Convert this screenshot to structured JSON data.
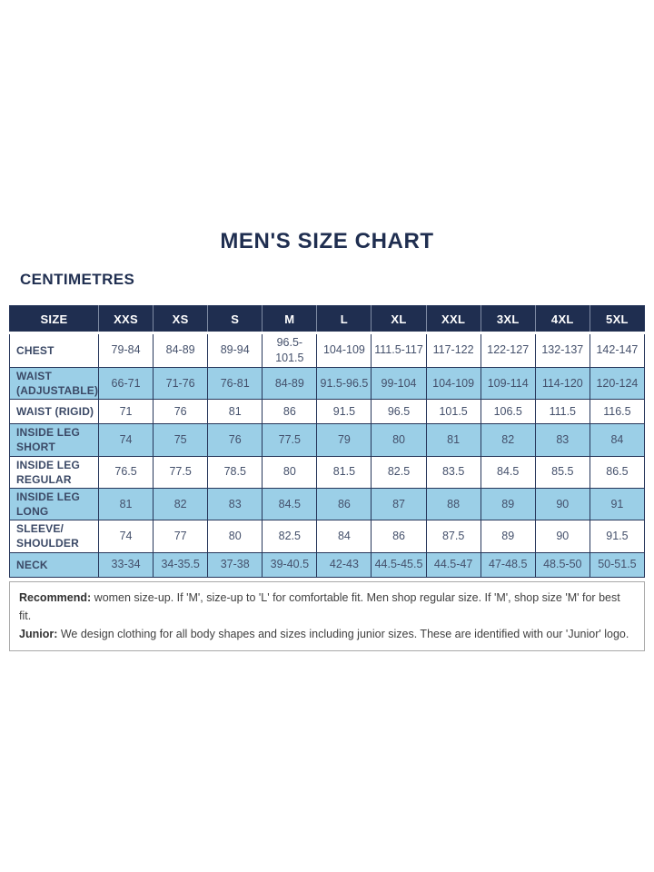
{
  "page": {
    "title": "MEN'S SIZE CHART",
    "units_label": "CENTIMETRES"
  },
  "colors": {
    "navy": "#1f2e50",
    "light_blue": "#9bcfe7",
    "body_text": "#44506b"
  },
  "table": {
    "columns": [
      "SIZE",
      "XXS",
      "XS",
      "S",
      "M",
      "L",
      "XL",
      "XXL",
      "3XL",
      "4XL",
      "5XL"
    ],
    "rows": [
      {
        "label": "CHEST",
        "values": [
          "79-84",
          "84-89",
          "89-94",
          "96.5-101.5",
          "104-109",
          "111.5-117",
          "117-122",
          "122-127",
          "132-137",
          "142-147"
        ]
      },
      {
        "label": "WAIST (ADJUSTABLE)",
        "values": [
          "66-71",
          "71-76",
          "76-81",
          "84-89",
          "91.5-96.5",
          "99-104",
          "104-109",
          "109-114",
          "114-120",
          "120-124"
        ]
      },
      {
        "label": "WAIST (RIGID)",
        "values": [
          "71",
          "76",
          "81",
          "86",
          "91.5",
          "96.5",
          "101.5",
          "106.5",
          "111.5",
          "116.5"
        ]
      },
      {
        "label": "INSIDE LEG SHORT",
        "values": [
          "74",
          "75",
          "76",
          "77.5",
          "79",
          "80",
          "81",
          "82",
          "83",
          "84"
        ]
      },
      {
        "label": "INSIDE LEG REGULAR",
        "values": [
          "76.5",
          "77.5",
          "78.5",
          "80",
          "81.5",
          "82.5",
          "83.5",
          "84.5",
          "85.5",
          "86.5"
        ]
      },
      {
        "label": "INSIDE LEG LONG",
        "values": [
          "81",
          "82",
          "83",
          "84.5",
          "86",
          "87",
          "88",
          "89",
          "90",
          "91"
        ]
      },
      {
        "label": "SLEEVE/ SHOULDER",
        "values": [
          "74",
          "77",
          "80",
          "82.5",
          "84",
          "86",
          "87.5",
          "89",
          "90",
          "91.5"
        ]
      },
      {
        "label": "NECK",
        "values": [
          "33-34",
          "34-35.5",
          "37-38",
          "39-40.5",
          "42-43",
          "44.5-45.5",
          "44.5-47",
          "47-48.5",
          "48.5-50",
          "50-51.5"
        ]
      }
    ]
  },
  "footer": {
    "lines": [
      {
        "label": "Recommend:",
        "text": " women size-up. If 'M', size-up to 'L' for comfortable fit. Men shop regular size. If 'M', shop size 'M' for best fit."
      },
      {
        "label": "Junior:",
        "text": " We design clothing for all body shapes and sizes including junior sizes. These are identified with our 'Junior' logo."
      }
    ]
  }
}
